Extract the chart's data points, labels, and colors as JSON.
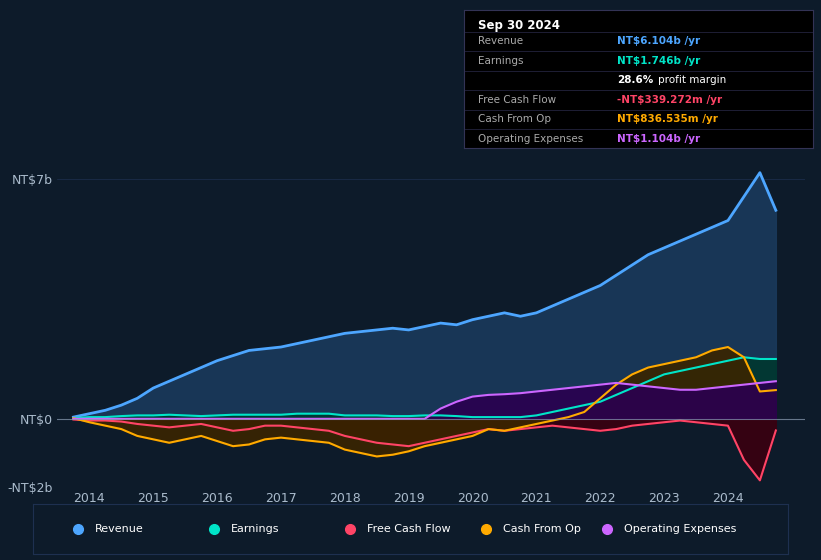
{
  "bg_color": "#0d1b2a",
  "plot_bg_color": "#0d1b2a",
  "grid_color": "#1e3050",
  "zero_line_color": "#8899aa",
  "title_box": {
    "date": "Sep 30 2024",
    "rows": [
      {
        "label": "Revenue",
        "value": "NT$6.104b /yr",
        "value_color": "#4da6ff"
      },
      {
        "label": "Earnings",
        "value": "NT$1.746b /yr",
        "value_color": "#00e5c8"
      },
      {
        "label": "",
        "value": "28.6% profit margin",
        "value_color": "#ffffff"
      },
      {
        "label": "Free Cash Flow",
        "value": "-NT$339.272m /yr",
        "value_color": "#ff4466"
      },
      {
        "label": "Cash From Op",
        "value": "NT$836.535m /yr",
        "value_color": "#ffaa00"
      },
      {
        "label": "Operating Expenses",
        "value": "NT$1.104b /yr",
        "value_color": "#cc66ff"
      }
    ]
  },
  "ylim": [
    -2.0,
    7.5
  ],
  "yticks": [
    -2,
    0,
    7
  ],
  "ytick_labels": [
    "-NT$2b",
    "NT$0",
    "NT$7b"
  ],
  "xlim_start": 2013.5,
  "xlim_end": 2025.2,
  "xticks": [
    2014,
    2015,
    2016,
    2017,
    2018,
    2019,
    2020,
    2021,
    2022,
    2023,
    2024
  ],
  "legend_items": [
    {
      "label": "Revenue",
      "color": "#4da6ff"
    },
    {
      "label": "Earnings",
      "color": "#00e5c8"
    },
    {
      "label": "Free Cash Flow",
      "color": "#ff4466"
    },
    {
      "label": "Cash From Op",
      "color": "#ffaa00"
    },
    {
      "label": "Operating Expenses",
      "color": "#cc66ff"
    }
  ],
  "revenue": {
    "color": "#4da6ff",
    "fill_color": "#1a3a5c",
    "x": [
      2013.75,
      2014.0,
      2014.25,
      2014.5,
      2014.75,
      2015.0,
      2015.25,
      2015.5,
      2015.75,
      2016.0,
      2016.25,
      2016.5,
      2016.75,
      2017.0,
      2017.25,
      2017.5,
      2017.75,
      2018.0,
      2018.25,
      2018.5,
      2018.75,
      2019.0,
      2019.25,
      2019.5,
      2019.75,
      2020.0,
      2020.25,
      2020.5,
      2020.75,
      2021.0,
      2021.25,
      2021.5,
      2021.75,
      2022.0,
      2022.25,
      2022.5,
      2022.75,
      2023.0,
      2023.25,
      2023.5,
      2023.75,
      2024.0,
      2024.25,
      2024.5,
      2024.75
    ],
    "y": [
      0.05,
      0.15,
      0.25,
      0.4,
      0.6,
      0.9,
      1.1,
      1.3,
      1.5,
      1.7,
      1.85,
      2.0,
      2.05,
      2.1,
      2.2,
      2.3,
      2.4,
      2.5,
      2.55,
      2.6,
      2.65,
      2.6,
      2.7,
      2.8,
      2.75,
      2.9,
      3.0,
      3.1,
      3.0,
      3.1,
      3.3,
      3.5,
      3.7,
      3.9,
      4.2,
      4.5,
      4.8,
      5.0,
      5.2,
      5.4,
      5.6,
      5.8,
      6.5,
      7.2,
      6.1
    ]
  },
  "earnings": {
    "color": "#00e5c8",
    "fill_color": "#003830",
    "x": [
      2013.75,
      2014.0,
      2014.25,
      2014.5,
      2014.75,
      2015.0,
      2015.25,
      2015.5,
      2015.75,
      2016.0,
      2016.25,
      2016.5,
      2016.75,
      2017.0,
      2017.25,
      2017.5,
      2017.75,
      2018.0,
      2018.25,
      2018.5,
      2018.75,
      2019.0,
      2019.25,
      2019.5,
      2019.75,
      2020.0,
      2020.25,
      2020.5,
      2020.75,
      2021.0,
      2021.25,
      2021.5,
      2021.75,
      2022.0,
      2022.25,
      2022.5,
      2022.75,
      2023.0,
      2023.25,
      2023.5,
      2023.75,
      2024.0,
      2024.25,
      2024.5,
      2024.75
    ],
    "y": [
      0.02,
      0.05,
      0.05,
      0.08,
      0.1,
      0.1,
      0.12,
      0.1,
      0.08,
      0.1,
      0.12,
      0.12,
      0.12,
      0.12,
      0.15,
      0.15,
      0.15,
      0.1,
      0.1,
      0.1,
      0.08,
      0.08,
      0.1,
      0.1,
      0.08,
      0.05,
      0.05,
      0.05,
      0.05,
      0.1,
      0.2,
      0.3,
      0.4,
      0.5,
      0.7,
      0.9,
      1.1,
      1.3,
      1.4,
      1.5,
      1.6,
      1.7,
      1.8,
      1.75,
      1.75
    ]
  },
  "free_cash_flow": {
    "color": "#ff4466",
    "fill_color": "#3a0010",
    "x": [
      2013.75,
      2014.0,
      2014.25,
      2014.5,
      2014.75,
      2015.0,
      2015.25,
      2015.5,
      2015.75,
      2016.0,
      2016.25,
      2016.5,
      2016.75,
      2017.0,
      2017.25,
      2017.5,
      2017.75,
      2018.0,
      2018.25,
      2018.5,
      2018.75,
      2019.0,
      2019.25,
      2019.5,
      2019.75,
      2020.0,
      2020.25,
      2020.5,
      2020.75,
      2021.0,
      2021.25,
      2021.5,
      2021.75,
      2022.0,
      2022.25,
      2022.5,
      2022.75,
      2023.0,
      2023.25,
      2023.5,
      2023.75,
      2024.0,
      2024.25,
      2024.5,
      2024.75
    ],
    "y": [
      -0.02,
      -0.05,
      -0.05,
      -0.08,
      -0.15,
      -0.2,
      -0.25,
      -0.2,
      -0.15,
      -0.25,
      -0.35,
      -0.3,
      -0.2,
      -0.2,
      -0.25,
      -0.3,
      -0.35,
      -0.5,
      -0.6,
      -0.7,
      -0.75,
      -0.8,
      -0.7,
      -0.6,
      -0.5,
      -0.4,
      -0.3,
      -0.35,
      -0.3,
      -0.25,
      -0.2,
      -0.25,
      -0.3,
      -0.35,
      -0.3,
      -0.2,
      -0.15,
      -0.1,
      -0.05,
      -0.1,
      -0.15,
      -0.2,
      -1.2,
      -1.8,
      -0.34
    ]
  },
  "cash_from_op": {
    "color": "#ffaa00",
    "fill_color": "#3a2500",
    "x": [
      2013.75,
      2014.0,
      2014.25,
      2014.5,
      2014.75,
      2015.0,
      2015.25,
      2015.5,
      2015.75,
      2016.0,
      2016.25,
      2016.5,
      2016.75,
      2017.0,
      2017.25,
      2017.5,
      2017.75,
      2018.0,
      2018.25,
      2018.5,
      2018.75,
      2019.0,
      2019.25,
      2019.5,
      2019.75,
      2020.0,
      2020.25,
      2020.5,
      2020.75,
      2021.0,
      2021.25,
      2021.5,
      2021.75,
      2022.0,
      2022.25,
      2022.5,
      2022.75,
      2023.0,
      2023.25,
      2023.5,
      2023.75,
      2024.0,
      2024.25,
      2024.5,
      2024.75
    ],
    "y": [
      0.02,
      -0.1,
      -0.2,
      -0.3,
      -0.5,
      -0.6,
      -0.7,
      -0.6,
      -0.5,
      -0.65,
      -0.8,
      -0.75,
      -0.6,
      -0.55,
      -0.6,
      -0.65,
      -0.7,
      -0.9,
      -1.0,
      -1.1,
      -1.05,
      -0.95,
      -0.8,
      -0.7,
      -0.6,
      -0.5,
      -0.3,
      -0.35,
      -0.25,
      -0.15,
      -0.05,
      0.05,
      0.2,
      0.6,
      1.0,
      1.3,
      1.5,
      1.6,
      1.7,
      1.8,
      2.0,
      2.1,
      1.8,
      0.8,
      0.84
    ]
  },
  "operating_expenses": {
    "color": "#cc66ff",
    "fill_color": "#2a0050",
    "x": [
      2013.75,
      2014.0,
      2014.25,
      2014.5,
      2014.75,
      2015.0,
      2015.25,
      2015.5,
      2015.75,
      2016.0,
      2016.25,
      2016.5,
      2016.75,
      2017.0,
      2017.25,
      2017.5,
      2017.75,
      2018.0,
      2018.25,
      2018.5,
      2018.75,
      2019.0,
      2019.25,
      2019.5,
      2019.75,
      2020.0,
      2020.25,
      2020.5,
      2020.75,
      2021.0,
      2021.25,
      2021.5,
      2021.75,
      2022.0,
      2022.25,
      2022.5,
      2022.75,
      2023.0,
      2023.25,
      2023.5,
      2023.75,
      2024.0,
      2024.25,
      2024.5,
      2024.75
    ],
    "y": [
      0.0,
      0.0,
      0.0,
      0.0,
      0.0,
      0.0,
      0.0,
      0.0,
      0.0,
      0.0,
      0.0,
      0.0,
      0.0,
      0.0,
      0.0,
      0.0,
      0.0,
      0.0,
      0.0,
      0.0,
      0.0,
      0.0,
      0.0,
      0.3,
      0.5,
      0.65,
      0.7,
      0.72,
      0.75,
      0.8,
      0.85,
      0.9,
      0.95,
      1.0,
      1.05,
      1.0,
      0.95,
      0.9,
      0.85,
      0.85,
      0.9,
      0.95,
      1.0,
      1.05,
      1.1
    ]
  }
}
